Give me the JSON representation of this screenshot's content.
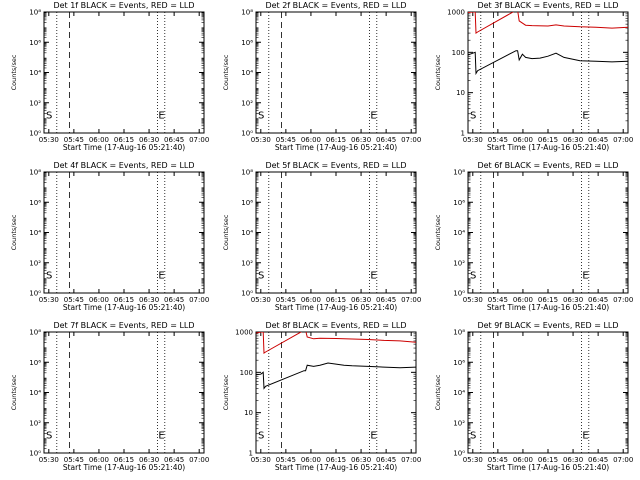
{
  "chart_data": [
    {
      "type": "line",
      "title": "Det 1f BLACK = Events, RED = LLD",
      "xlabel": "Start Time (17-Aug-16 05:21:40)",
      "ylabel": "Counts/sec",
      "scale": "log",
      "ylim": [
        1.0,
        100000000.0
      ],
      "ytick_labels": [
        "10⁰",
        "10²",
        "10⁴",
        "10⁶",
        "10⁸"
      ],
      "xtick_labels": [
        "05:30",
        "05:45",
        "06:00",
        "06:15",
        "06:30",
        "06:45",
        "07:00"
      ],
      "markers": [
        "S",
        "E"
      ],
      "series": []
    },
    {
      "type": "line",
      "title": "Det 2f BLACK = Events, RED = LLD",
      "xlabel": "Start Time (17-Aug-16 05:21:40)",
      "ylabel": "Counts/sec",
      "scale": "log",
      "ylim": [
        1.0,
        100000000.0
      ],
      "ytick_labels": [
        "10⁰",
        "10²",
        "10⁴",
        "10⁶",
        "10⁸"
      ],
      "xtick_labels": [
        "05:30",
        "05:45",
        "06:00",
        "06:15",
        "06:30",
        "06:45",
        "07:00"
      ],
      "markers": [
        "S",
        "E"
      ],
      "series": []
    },
    {
      "type": "line",
      "title": "Det 3f BLACK = Events, RED = LLD",
      "xlabel": "Start Time (17-Aug-16 05:21:40)",
      "ylabel": "Counts/sec",
      "scale": "log",
      "ylim": [
        1,
        1000
      ],
      "ytick_labels": [
        "1",
        "10",
        "100",
        "1000"
      ],
      "xtick_labels": [
        "05:30",
        "05:45",
        "06:00",
        "06:15",
        "06:30",
        "06:45",
        "07:00"
      ],
      "markers": [
        "S",
        "E"
      ],
      "series": [
        {
          "color": "#cc0000",
          "values": [
            [
              -0.02,
              950
            ],
            [
              0.03,
              1000
            ],
            [
              0.045,
              1000
            ],
            [
              0.05,
              300
            ],
            [
              0.06,
              320
            ],
            [
              0.3,
              1100
            ],
            [
              0.31,
              1100
            ],
            [
              0.32,
              600
            ],
            [
              0.36,
              470
            ],
            [
              0.4,
              460
            ],
            [
              0.5,
              450
            ],
            [
              0.55,
              480
            ],
            [
              0.6,
              450
            ],
            [
              0.7,
              430
            ],
            [
              0.8,
              420
            ],
            [
              0.9,
              400
            ],
            [
              1.0,
              420
            ]
          ]
        },
        {
          "color": "#000000",
          "values": [
            [
              -0.02,
              80
            ],
            [
              0.03,
              95
            ],
            [
              0.045,
              100
            ],
            [
              0.05,
              30
            ],
            [
              0.06,
              35
            ],
            [
              0.3,
              110
            ],
            [
              0.31,
              110
            ],
            [
              0.32,
              65
            ],
            [
              0.34,
              90
            ],
            [
              0.36,
              75
            ],
            [
              0.4,
              70
            ],
            [
              0.45,
              72
            ],
            [
              0.5,
              80
            ],
            [
              0.55,
              95
            ],
            [
              0.6,
              75
            ],
            [
              0.7,
              62
            ],
            [
              0.8,
              60
            ],
            [
              0.9,
              58
            ],
            [
              1.0,
              60
            ]
          ]
        }
      ]
    },
    {
      "type": "line",
      "title": "Det 4f BLACK = Events, RED = LLD",
      "xlabel": "Start Time (17-Aug-16 05:21:40)",
      "ylabel": "Counts/sec",
      "scale": "log",
      "ylim": [
        1.0,
        100000000.0
      ],
      "ytick_labels": [
        "10⁰",
        "10²",
        "10⁴",
        "10⁶",
        "10⁸"
      ],
      "xtick_labels": [
        "05:30",
        "05:45",
        "06:00",
        "06:15",
        "06:30",
        "06:45",
        "07:00"
      ],
      "markers": [
        "S",
        "E"
      ],
      "series": []
    },
    {
      "type": "line",
      "title": "Det 5f BLACK = Events, RED = LLD",
      "xlabel": "Start Time (17-Aug-16 05:21:40)",
      "ylabel": "Counts/sec",
      "scale": "log",
      "ylim": [
        1.0,
        100000000.0
      ],
      "ytick_labels": [
        "10⁰",
        "10²",
        "10⁴",
        "10⁶",
        "10⁸"
      ],
      "xtick_labels": [
        "05:30",
        "05:45",
        "06:00",
        "06:15",
        "06:30",
        "06:45",
        "07:00"
      ],
      "markers": [
        "S",
        "E"
      ],
      "series": []
    },
    {
      "type": "line",
      "title": "Det 6f BLACK = Events, RED = LLD",
      "xlabel": "Start Time (17-Aug-16 05:21:40)",
      "ylabel": "Counts/sec",
      "scale": "log",
      "ylim": [
        1.0,
        100000000.0
      ],
      "ytick_labels": [
        "10⁰",
        "10²",
        "10⁴",
        "10⁶",
        "10⁸"
      ],
      "xtick_labels": [
        "05:30",
        "05:45",
        "06:00",
        "06:15",
        "06:30",
        "06:45",
        "07:00"
      ],
      "markers": [
        "S",
        "E"
      ],
      "series": []
    },
    {
      "type": "line",
      "title": "Det 7f BLACK = Events, RED = LLD",
      "xlabel": "Start Time (17-Aug-16 05:21:40)",
      "ylabel": "Counts/sec",
      "scale": "log",
      "ylim": [
        1.0,
        100000000.0
      ],
      "ytick_labels": [
        "10⁰",
        "10²",
        "10⁴",
        "10⁶",
        "10⁸"
      ],
      "xtick_labels": [
        "05:30",
        "05:45",
        "06:00",
        "06:15",
        "06:30",
        "06:45",
        "07:00"
      ],
      "markers": [
        "S",
        "E"
      ],
      "series": []
    },
    {
      "type": "line",
      "title": "Det 8f BLACK = Events, RED = LLD",
      "xlabel": "Start Time (17-Aug-16 05:21:40)",
      "ylabel": "Counts/sec",
      "scale": "log",
      "ylim": [
        1,
        1000
      ],
      "ytick_labels": [
        "1",
        "10",
        "100",
        "1000"
      ],
      "xtick_labels": [
        "05:30",
        "05:45",
        "06:00",
        "06:15",
        "06:30",
        "06:45",
        "07:00"
      ],
      "markers": [
        "S",
        "E"
      ],
      "series": [
        {
          "color": "#cc0000",
          "values": [
            [
              -0.02,
              900
            ],
            [
              0.03,
              1000
            ],
            [
              0.045,
              1000
            ],
            [
              0.05,
              300
            ],
            [
              0.06,
              320
            ],
            [
              0.3,
              1100
            ],
            [
              0.31,
              1100
            ],
            [
              0.32,
              750
            ],
            [
              0.36,
              680
            ],
            [
              0.4,
              700
            ],
            [
              0.5,
              690
            ],
            [
              0.6,
              670
            ],
            [
              0.7,
              650
            ],
            [
              0.8,
              620
            ],
            [
              0.9,
              600
            ],
            [
              1.0,
              560
            ]
          ]
        },
        {
          "color": "#000000",
          "values": [
            [
              -0.02,
              85
            ],
            [
              0.03,
              90
            ],
            [
              0.045,
              100
            ],
            [
              0.05,
              40
            ],
            [
              0.06,
              45
            ],
            [
              0.3,
              110
            ],
            [
              0.31,
              110
            ],
            [
              0.32,
              150
            ],
            [
              0.36,
              140
            ],
            [
              0.4,
              150
            ],
            [
              0.45,
              170
            ],
            [
              0.5,
              160
            ],
            [
              0.55,
              150
            ],
            [
              0.6,
              145
            ],
            [
              0.7,
              140
            ],
            [
              0.8,
              135
            ],
            [
              0.9,
              130
            ],
            [
              1.0,
              135
            ]
          ]
        }
      ]
    },
    {
      "type": "line",
      "title": "Det 9f BLACK = Events, RED = LLD",
      "xlabel": "Start Time (17-Aug-16 05:21:40)",
      "ylabel": "Counts/sec",
      "scale": "log",
      "ylim": [
        1.0,
        100000000.0
      ],
      "ytick_labels": [
        "10⁰",
        "10²",
        "10⁴",
        "10⁶",
        "10⁸"
      ],
      "xtick_labels": [
        "05:30",
        "05:45",
        "06:00",
        "06:15",
        "06:30",
        "06:45",
        "07:00"
      ],
      "markers": [
        "S",
        "E"
      ],
      "series": []
    }
  ]
}
